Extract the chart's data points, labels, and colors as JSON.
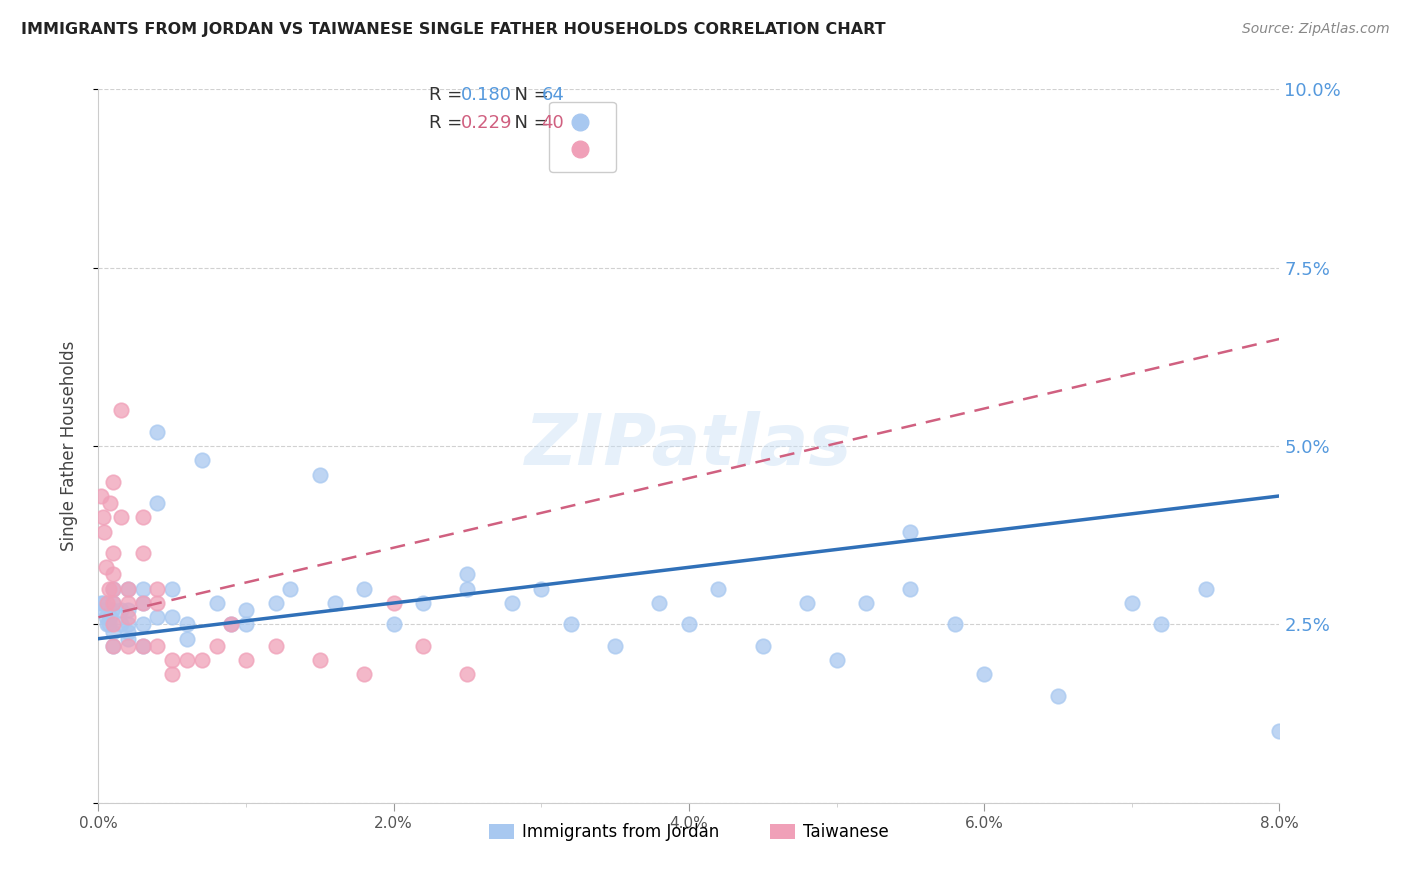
{
  "title": "IMMIGRANTS FROM JORDAN VS TAIWANESE SINGLE FATHER HOUSEHOLDS CORRELATION CHART",
  "source": "Source: ZipAtlas.com",
  "ylabel": "Single Father Households",
  "legend_labels": [
    "Immigrants from Jordan",
    "Taiwanese"
  ],
  "jordan_R": 0.18,
  "jordan_N": 64,
  "taiwanese_R": 0.229,
  "taiwanese_N": 40,
  "x_min": 0.0,
  "x_max": 0.08,
  "y_min": 0.0,
  "y_max": 0.1,
  "color_jordan": "#a8c8f0",
  "color_taiwanese": "#f0a0b8",
  "color_jordan_line": "#3070b8",
  "color_taiwanese_line": "#d06080",
  "color_axis_labels": "#5599dd",
  "background_color": "#ffffff",
  "watermark": "ZIPatlas",
  "yticks": [
    0.0,
    0.025,
    0.05,
    0.075,
    0.1
  ],
  "ytick_labels": [
    "",
    "2.5%",
    "5.0%",
    "7.5%",
    "10.0%"
  ],
  "xticks": [
    0.0,
    0.02,
    0.04,
    0.06,
    0.08
  ],
  "xtick_labels": [
    "0.0%",
    "2.0%",
    "4.0%",
    "6.0%",
    "8.0%"
  ],
  "jordan_line_start_y": 0.023,
  "jordan_line_end_y": 0.043,
  "taiwanese_line_start_y": 0.026,
  "taiwanese_line_end_y": 0.065,
  "jordan_x": [
    0.0002,
    0.0003,
    0.0004,
    0.0005,
    0.0006,
    0.0007,
    0.0008,
    0.0009,
    0.001,
    0.001,
    0.001,
    0.001,
    0.0015,
    0.0015,
    0.002,
    0.002,
    0.002,
    0.002,
    0.002,
    0.003,
    0.003,
    0.003,
    0.003,
    0.004,
    0.004,
    0.004,
    0.005,
    0.005,
    0.006,
    0.006,
    0.007,
    0.008,
    0.009,
    0.01,
    0.01,
    0.012,
    0.013,
    0.015,
    0.016,
    0.018,
    0.02,
    0.022,
    0.025,
    0.025,
    0.028,
    0.03,
    0.032,
    0.035,
    0.038,
    0.04,
    0.042,
    0.045,
    0.048,
    0.05,
    0.052,
    0.055,
    0.058,
    0.06,
    0.065,
    0.07,
    0.072,
    0.075,
    0.055,
    0.08
  ],
  "jordan_y": [
    0.028,
    0.028,
    0.027,
    0.026,
    0.025,
    0.025,
    0.026,
    0.027,
    0.024,
    0.028,
    0.03,
    0.022,
    0.025,
    0.027,
    0.024,
    0.025,
    0.023,
    0.027,
    0.03,
    0.025,
    0.022,
    0.028,
    0.03,
    0.052,
    0.042,
    0.026,
    0.026,
    0.03,
    0.025,
    0.023,
    0.048,
    0.028,
    0.025,
    0.027,
    0.025,
    0.028,
    0.03,
    0.046,
    0.028,
    0.03,
    0.025,
    0.028,
    0.03,
    0.032,
    0.028,
    0.03,
    0.025,
    0.022,
    0.028,
    0.025,
    0.03,
    0.022,
    0.028,
    0.02,
    0.028,
    0.03,
    0.025,
    0.018,
    0.015,
    0.028,
    0.025,
    0.03,
    0.038,
    0.01
  ],
  "taiwanese_x": [
    0.0002,
    0.0003,
    0.0004,
    0.0005,
    0.0006,
    0.0007,
    0.0008,
    0.001,
    0.001,
    0.001,
    0.001,
    0.001,
    0.001,
    0.0015,
    0.002,
    0.002,
    0.002,
    0.002,
    0.003,
    0.003,
    0.003,
    0.003,
    0.004,
    0.004,
    0.004,
    0.005,
    0.005,
    0.006,
    0.007,
    0.008,
    0.009,
    0.01,
    0.012,
    0.015,
    0.018,
    0.02,
    0.022,
    0.025,
    0.0015,
    0.001
  ],
  "taiwanese_y": [
    0.043,
    0.04,
    0.038,
    0.033,
    0.028,
    0.03,
    0.042,
    0.035,
    0.03,
    0.025,
    0.022,
    0.028,
    0.032,
    0.04,
    0.028,
    0.026,
    0.03,
    0.022,
    0.035,
    0.04,
    0.028,
    0.022,
    0.028,
    0.03,
    0.022,
    0.02,
    0.018,
    0.02,
    0.02,
    0.022,
    0.025,
    0.02,
    0.022,
    0.02,
    0.018,
    0.028,
    0.022,
    0.018,
    0.055,
    0.045
  ]
}
